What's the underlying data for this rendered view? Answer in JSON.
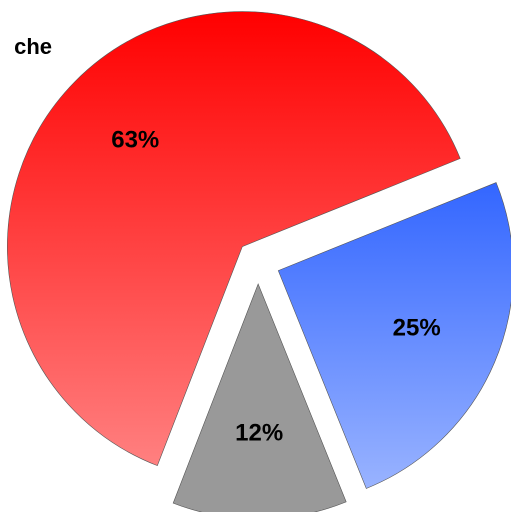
{
  "chart_data": {
    "type": "pie",
    "categories": [
      "che",
      null,
      null
    ],
    "values": [
      63,
      25,
      12
    ],
    "value_labels": [
      "63%",
      "25%",
      "12%"
    ],
    "colors": [
      "#ff0000",
      "#3366ff",
      "#999999"
    ]
  }
}
